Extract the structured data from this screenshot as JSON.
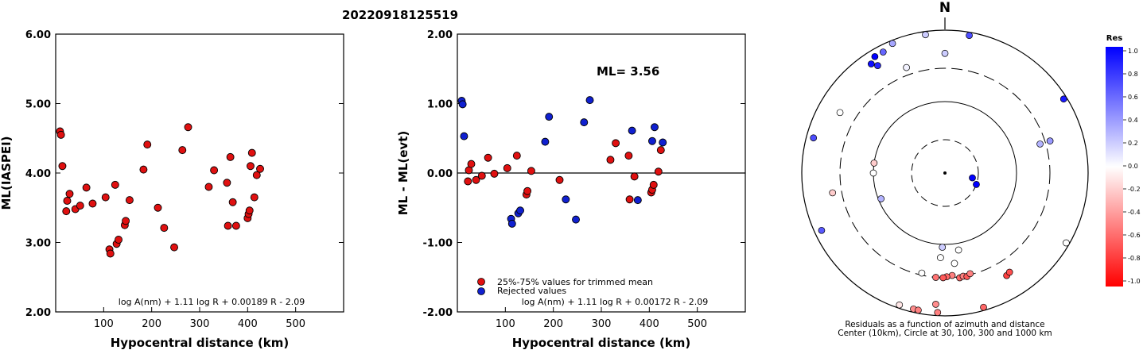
{
  "title": "20220918125519",
  "chart_data": [
    {
      "type": "scatter",
      "name": "ml-vs-distance",
      "xlabel": "Hypocentral distance (km)",
      "ylabel": "ML(IASPEI)",
      "xlim": [
        0,
        600
      ],
      "ylim": [
        2.0,
        6.0
      ],
      "xticks": [
        "100",
        "200",
        "300",
        "400",
        "500"
      ],
      "yticks": [
        "2.00",
        "3.00",
        "4.00",
        "5.00",
        "6.00"
      ],
      "formula": "log A(nm) + 1.11 log R + 0.00189 R - 2.09",
      "color": "#e01010",
      "points": [
        [
          9,
          4.6
        ],
        [
          11,
          4.55
        ],
        [
          14,
          4.1
        ],
        [
          22,
          3.45
        ],
        [
          24,
          3.6
        ],
        [
          29,
          3.7
        ],
        [
          41,
          3.48
        ],
        [
          51,
          3.53
        ],
        [
          64,
          3.79
        ],
        [
          77,
          3.56
        ],
        [
          104,
          3.65
        ],
        [
          112,
          2.9
        ],
        [
          114,
          2.84
        ],
        [
          124,
          3.83
        ],
        [
          127,
          2.98
        ],
        [
          131,
          3.04
        ],
        [
          144,
          3.25
        ],
        [
          146,
          3.31
        ],
        [
          154,
          3.61
        ],
        [
          183,
          4.05
        ],
        [
          191,
          4.41
        ],
        [
          213,
          3.5
        ],
        [
          226,
          3.21
        ],
        [
          247,
          2.93
        ],
        [
          264,
          4.33
        ],
        [
          276,
          4.66
        ],
        [
          319,
          3.8
        ],
        [
          330,
          4.04
        ],
        [
          357,
          3.86
        ],
        [
          359,
          3.24
        ],
        [
          364,
          4.23
        ],
        [
          369,
          3.58
        ],
        [
          376,
          3.24
        ],
        [
          400,
          3.35
        ],
        [
          402,
          3.41
        ],
        [
          404,
          3.46
        ],
        [
          406,
          4.1
        ],
        [
          409,
          4.29
        ],
        [
          414,
          3.65
        ],
        [
          419,
          3.97
        ],
        [
          426,
          4.06
        ]
      ]
    },
    {
      "type": "scatter",
      "name": "residual-vs-distance",
      "xlabel": "Hypocentral distance (km)",
      "ylabel": "ML - ML(evt)",
      "xlim": [
        0,
        600
      ],
      "ylim": [
        -2.0,
        2.0
      ],
      "xticks": [
        "100",
        "200",
        "300",
        "400",
        "500"
      ],
      "yticks": [
        "-2.00",
        "-1.00",
        "0.00",
        "1.00",
        "2.00"
      ],
      "annotation": "ML= 3.56",
      "formula": "log A(nm) + 1.11 log R + 0.00172 R - 2.09",
      "legend": [
        {
          "label": "25%-75% values for trimmed mean",
          "color": "#e01010"
        },
        {
          "label": "Rejected values",
          "color": "#1020d0"
        }
      ],
      "series": [
        {
          "name": "25%-75% values for trimmed mean",
          "color": "#e01010",
          "points": [
            [
              22,
              -0.12
            ],
            [
              24,
              0.04
            ],
            [
              29,
              0.13
            ],
            [
              39,
              -0.1
            ],
            [
              51,
              -0.04
            ],
            [
              64,
              0.22
            ],
            [
              77,
              -0.01
            ],
            [
              104,
              0.07
            ],
            [
              124,
              0.25
            ],
            [
              144,
              -0.31
            ],
            [
              146,
              -0.26
            ],
            [
              154,
              0.03
            ],
            [
              213,
              -0.1
            ],
            [
              319,
              0.19
            ],
            [
              330,
              0.43
            ],
            [
              357,
              0.25
            ],
            [
              359,
              -0.38
            ],
            [
              369,
              -0.05
            ],
            [
              404,
              -0.28
            ],
            [
              406,
              -0.24
            ],
            [
              409,
              -0.17
            ],
            [
              419,
              0.02
            ],
            [
              424,
              0.33
            ]
          ]
        },
        {
          "name": "Rejected values",
          "color": "#1020d0",
          "points": [
            [
              9,
              1.04
            ],
            [
              11,
              0.99
            ],
            [
              14,
              0.53
            ],
            [
              112,
              -0.66
            ],
            [
              114,
              -0.73
            ],
            [
              127,
              -0.58
            ],
            [
              131,
              -0.54
            ],
            [
              183,
              0.45
            ],
            [
              191,
              0.81
            ],
            [
              226,
              -0.38
            ],
            [
              247,
              -0.67
            ],
            [
              264,
              0.73
            ],
            [
              276,
              1.05
            ],
            [
              364,
              0.61
            ],
            [
              376,
              -0.39
            ],
            [
              406,
              0.46
            ],
            [
              411,
              0.66
            ],
            [
              428,
              0.44
            ]
          ]
        }
      ]
    },
    {
      "type": "scatter",
      "name": "azimuth-polar-residuals",
      "north_label": "N",
      "caption_line1": "Residuals as a function of azimuth and distance",
      "caption_line2": "Center (10km), Circle at 30, 100, 300 and 1000 km",
      "rings_km": [
        10,
        30,
        100,
        300,
        1000
      ],
      "colorbar": {
        "title": "Res",
        "ticks": [
          "1.0",
          "0.8",
          "0.6",
          "0.4",
          "0.2",
          "0.0",
          "-0.2",
          "-0.4",
          "-0.6",
          "-0.8",
          "-1.0"
        ],
        "max_color": "#0000ff",
        "zero_color": "#ffffff",
        "min_color": "#ff0000"
      },
      "points": [
        {
          "az": 110,
          "dist_km": 30,
          "res": 1.0
        },
        {
          "az": 100,
          "dist_km": 25,
          "res": 1.0
        },
        {
          "az": 10,
          "dist_km": 1000,
          "res": 0.7
        },
        {
          "az": 58,
          "dist_km": 1000,
          "res": 0.9
        },
        {
          "az": 352,
          "dist_km": 980,
          "res": 0.2
        },
        {
          "az": 338,
          "dist_km": 1000,
          "res": 0.35
        },
        {
          "az": 333,
          "dist_km": 800,
          "res": 0.6
        },
        {
          "az": 329,
          "dist_km": 800,
          "res": 1.0
        },
        {
          "az": 326,
          "dist_km": 700,
          "res": 0.95
        },
        {
          "az": 328,
          "dist_km": 600,
          "res": 0.85
        },
        {
          "az": 0,
          "dist_km": 480,
          "res": 0.2
        },
        {
          "az": 340,
          "dist_km": 380,
          "res": 0.05
        },
        {
          "az": 300,
          "dist_km": 500,
          "res": 0.0
        },
        {
          "az": 73,
          "dist_km": 250,
          "res": 0.3
        },
        {
          "az": 73,
          "dist_km": 350,
          "res": 0.4
        },
        {
          "az": 285,
          "dist_km": 800,
          "res": 0.7
        },
        {
          "az": 245,
          "dist_km": 800,
          "res": 0.65
        },
        {
          "az": 120,
          "dist_km": 1000,
          "res": 0.0
        },
        {
          "az": 270,
          "dist_km": 100,
          "res": 0.0
        },
        {
          "az": 278,
          "dist_km": 100,
          "res": -0.2
        },
        {
          "az": 248,
          "dist_km": 92,
          "res": 0.3
        },
        {
          "az": 260,
          "dist_km": 400,
          "res": -0.2
        },
        {
          "az": 182,
          "dist_km": 110,
          "res": 0.2
        },
        {
          "az": 170,
          "dist_km": 125,
          "res": 0.0
        },
        {
          "az": 183,
          "dist_km": 155,
          "res": 0.0
        },
        {
          "az": 174,
          "dist_km": 190,
          "res": 0.0
        },
        {
          "az": 193,
          "dist_km": 280,
          "res": 0.0
        },
        {
          "az": 176,
          "dist_km": 280,
          "res": -0.5
        },
        {
          "az": 179,
          "dist_km": 290,
          "res": -0.6
        },
        {
          "az": 181,
          "dist_km": 300,
          "res": -0.65
        },
        {
          "az": 185,
          "dist_km": 300,
          "res": -0.55
        },
        {
          "az": 172,
          "dist_km": 310,
          "res": -0.6
        },
        {
          "az": 170,
          "dist_km": 300,
          "res": -0.5
        },
        {
          "az": 168,
          "dist_km": 310,
          "res": -0.65
        },
        {
          "az": 166,
          "dist_km": 290,
          "res": -0.5
        },
        {
          "az": 149,
          "dist_km": 480,
          "res": -0.75
        },
        {
          "az": 147,
          "dist_km": 460,
          "res": -0.7
        },
        {
          "az": 184,
          "dist_km": 700,
          "res": -0.45
        },
        {
          "az": 199,
          "dist_km": 900,
          "res": -0.1
        },
        {
          "az": 193,
          "dist_km": 900,
          "res": -0.45
        },
        {
          "az": 191,
          "dist_km": 1000,
          "res": -0.5
        },
        {
          "az": 183,
          "dist_km": 1000,
          "res": -0.5
        },
        {
          "az": 164,
          "dist_km": 1000,
          "res": -0.6
        }
      ]
    }
  ]
}
